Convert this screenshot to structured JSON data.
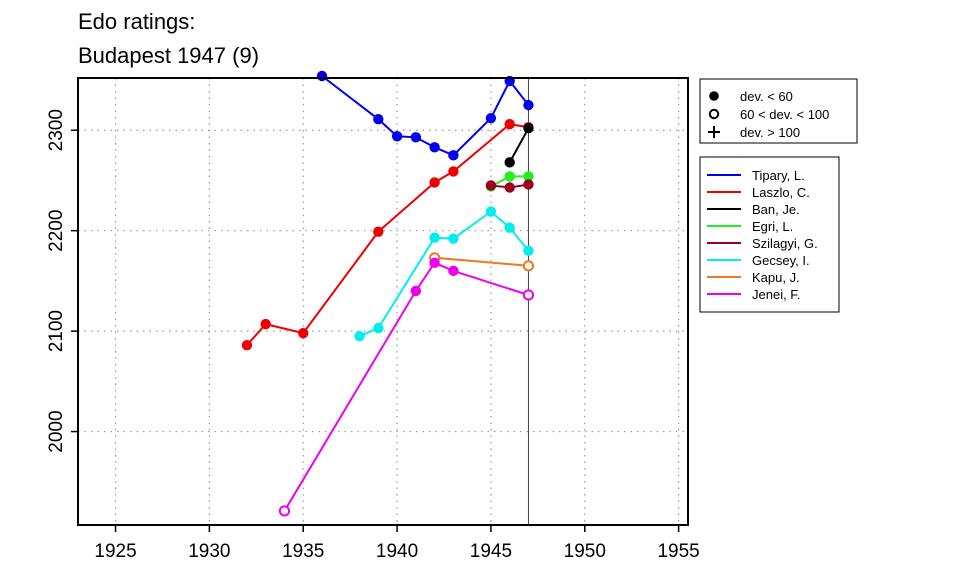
{
  "chart_data": {
    "type": "line",
    "title": "Edo ratings:",
    "subtitle": "Budapest 1947 (9)",
    "xlabel": "",
    "ylabel": "",
    "xlim": [
      1923,
      1955.5
    ],
    "ylim": [
      1907,
      2352
    ],
    "xticks": [
      1925,
      1930,
      1935,
      1940,
      1945,
      1950,
      1955
    ],
    "yticks": [
      2000,
      2100,
      2200,
      2300
    ],
    "grid": true,
    "event_line_x": 1947,
    "legend_placement": "right",
    "deviation_legend": [
      {
        "symbol": "filled",
        "label": "dev. < 60"
      },
      {
        "symbol": "open",
        "label": "60 < dev. < 100"
      },
      {
        "symbol": "plus",
        "label": "dev. > 100"
      }
    ],
    "series": [
      {
        "name": "Tipary, L.",
        "color": "#0000ee",
        "points": [
          [
            1936,
            2354,
            "f"
          ],
          [
            1939,
            2311,
            "f"
          ],
          [
            1940,
            2294,
            "f"
          ],
          [
            1941,
            2293,
            "f"
          ],
          [
            1942,
            2283,
            "f"
          ],
          [
            1943,
            2275,
            "f"
          ],
          [
            1945,
            2312,
            "f"
          ],
          [
            1946,
            2349,
            "f"
          ],
          [
            1947,
            2325,
            "f"
          ]
        ]
      },
      {
        "name": "Laszlo, C.",
        "color": "#ee0000",
        "points": [
          [
            1932,
            2086,
            "f"
          ],
          [
            1933,
            2107,
            "f"
          ],
          [
            1935,
            2098,
            "f"
          ],
          [
            1939,
            2199,
            "f"
          ],
          [
            1942,
            2248,
            "f"
          ],
          [
            1943,
            2259,
            "f"
          ],
          [
            1946,
            2306,
            "f"
          ],
          [
            1947,
            2303,
            "f"
          ]
        ]
      },
      {
        "name": "Ban, Je.",
        "color": "#000000",
        "points": [
          [
            1946,
            2268,
            "f"
          ],
          [
            1947,
            2302,
            "f"
          ]
        ]
      },
      {
        "name": "Egri, L.",
        "color": "#22ee22",
        "points": [
          [
            1945,
            2244,
            "f"
          ],
          [
            1946,
            2254,
            "f"
          ],
          [
            1947,
            2254,
            "f"
          ]
        ]
      },
      {
        "name": "Szilagyi, G.",
        "color": "#990022",
        "points": [
          [
            1945,
            2245,
            "f"
          ],
          [
            1946,
            2243,
            "f"
          ],
          [
            1947,
            2246,
            "f"
          ]
        ]
      },
      {
        "name": "Gecsey, I.",
        "color": "#00eeee",
        "points": [
          [
            1938,
            2095,
            "f"
          ],
          [
            1939,
            2103,
            "f"
          ],
          [
            1942,
            2193,
            "f"
          ],
          [
            1943,
            2192,
            "f"
          ],
          [
            1945,
            2219,
            "f"
          ],
          [
            1946,
            2203,
            "f"
          ],
          [
            1947,
            2180,
            "f"
          ]
        ]
      },
      {
        "name": "Kapu, J.",
        "color": "#ee7722",
        "points": [
          [
            1942,
            2173,
            "o"
          ],
          [
            1947,
            2165,
            "o"
          ]
        ]
      },
      {
        "name": "Jenei, F.",
        "color": "#ee00ee",
        "points": [
          [
            1934,
            1921,
            "o"
          ],
          [
            1941,
            2140,
            "f"
          ],
          [
            1942,
            2168,
            "f"
          ],
          [
            1943,
            2160,
            "f"
          ],
          [
            1947,
            2136,
            "o"
          ]
        ]
      }
    ]
  }
}
